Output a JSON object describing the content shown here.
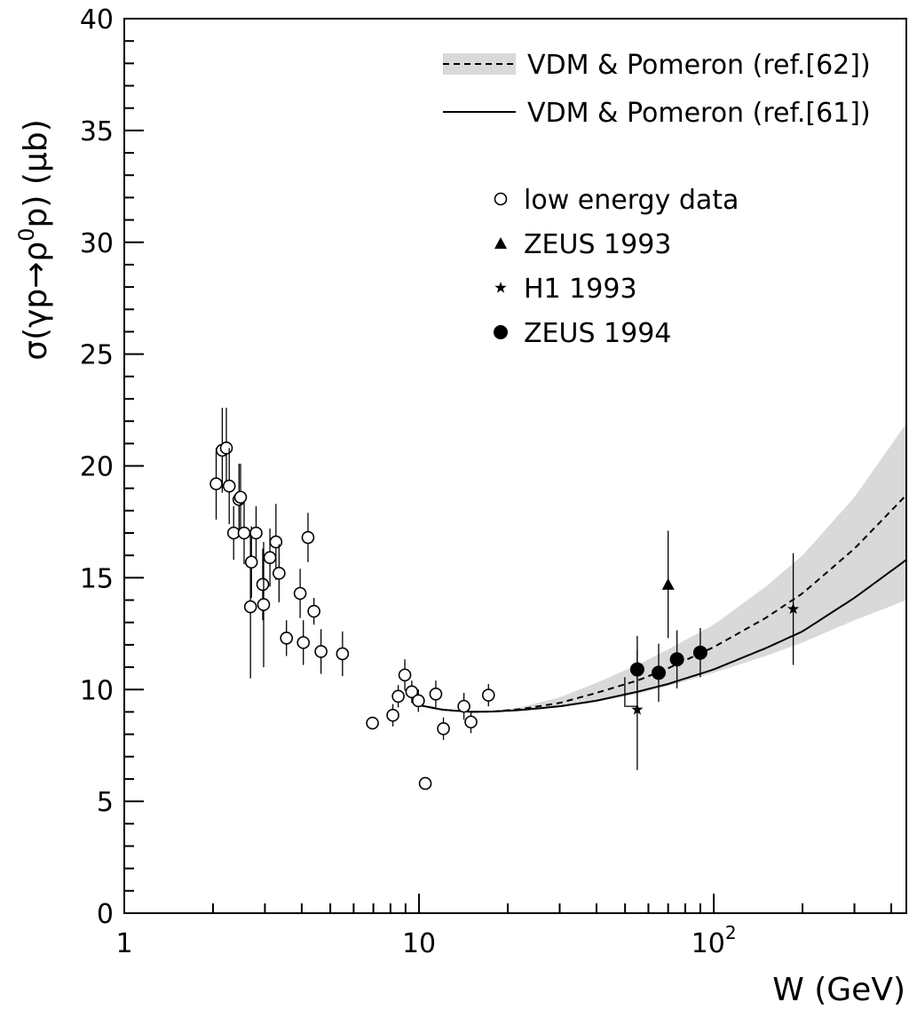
{
  "chart_data": {
    "type": "scatter",
    "title": "",
    "xlabel": "W (GeV)",
    "ylabel": "σ(γp→ρ⁰p) (μb)",
    "xscale": "log",
    "xlim": [
      1,
      450
    ],
    "ylim": [
      0,
      40
    ],
    "x_ticks": [
      {
        "value": 1,
        "label": "1"
      },
      {
        "value": 10,
        "label": "10"
      },
      {
        "value": 100,
        "label": "10",
        "sup": "2"
      }
    ],
    "y_ticks": [
      0,
      5,
      10,
      15,
      20,
      25,
      30,
      35,
      40
    ],
    "y_tick_labels": [
      "0",
      "5",
      "10",
      "15",
      "20",
      "25",
      "30",
      "35",
      "40"
    ],
    "grid": false,
    "legend_position": "top-right",
    "legend": [
      {
        "label": "VDM & Pomeron (ref.[62])",
        "style": "dashed-band"
      },
      {
        "label": "VDM & Pomeron (ref.[61])",
        "style": "solid"
      },
      {
        "label": "low energy data",
        "marker": "open-circle"
      },
      {
        "label": "ZEUS 1993",
        "marker": "triangle"
      },
      {
        "label": "H1 1993",
        "marker": "star"
      },
      {
        "label": "ZEUS 1994",
        "marker": "filled-circle"
      }
    ],
    "series": [
      {
        "name": "low energy data",
        "marker": "open-circle",
        "points": [
          {
            "x": 2.05,
            "y": 19.2,
            "err": 1.6
          },
          {
            "x": 2.15,
            "y": 20.7,
            "err": 1.9
          },
          {
            "x": 2.22,
            "y": 20.8,
            "err": 1.8
          },
          {
            "x": 2.27,
            "y": 19.1,
            "err": 1.7
          },
          {
            "x": 2.35,
            "y": 17.0,
            "err": 1.2
          },
          {
            "x": 2.45,
            "y": 18.5,
            "err": 1.6
          },
          {
            "x": 2.48,
            "y": 18.6,
            "err": 1.5
          },
          {
            "x": 2.55,
            "y": 17.0,
            "err": 1.4
          },
          {
            "x": 2.68,
            "y": 13.7,
            "err": 3.2
          },
          {
            "x": 2.7,
            "y": 15.7,
            "err": 1.6
          },
          {
            "x": 2.8,
            "y": 17.0,
            "err": 1.2
          },
          {
            "x": 2.95,
            "y": 14.7,
            "err": 1.6
          },
          {
            "x": 2.97,
            "y": 13.8,
            "err": 2.8
          },
          {
            "x": 3.12,
            "y": 15.9,
            "err": 1.3
          },
          {
            "x": 3.27,
            "y": 16.6,
            "err": 1.7
          },
          {
            "x": 3.35,
            "y": 15.2,
            "err": 1.3
          },
          {
            "x": 3.55,
            "y": 12.3,
            "err": 0.8
          },
          {
            "x": 3.95,
            "y": 14.3,
            "err": 1.1
          },
          {
            "x": 4.05,
            "y": 12.1,
            "err": 1.0
          },
          {
            "x": 4.2,
            "y": 16.8,
            "err": 1.1
          },
          {
            "x": 4.4,
            "y": 13.5,
            "err": 0.6
          },
          {
            "x": 4.65,
            "y": 11.7,
            "err": 1.0
          },
          {
            "x": 5.5,
            "y": 11.6,
            "err": 1.0
          },
          {
            "x": 6.95,
            "y": 8.5,
            "err": 0.2
          },
          {
            "x": 8.15,
            "y": 8.85,
            "err": 0.5
          },
          {
            "x": 8.5,
            "y": 9.7,
            "err": 0.5
          },
          {
            "x": 8.95,
            "y": 10.65,
            "err": 0.7
          },
          {
            "x": 9.45,
            "y": 9.9,
            "err": 0.5
          },
          {
            "x": 9.95,
            "y": 9.5,
            "err": 0.5
          },
          {
            "x": 10.5,
            "y": 5.8,
            "err": 0.2
          },
          {
            "x": 11.4,
            "y": 9.8,
            "err": 0.6
          },
          {
            "x": 12.1,
            "y": 8.25,
            "err": 0.5
          },
          {
            "x": 14.2,
            "y": 9.25,
            "err": 0.6
          },
          {
            "x": 15.0,
            "y": 8.55,
            "err": 0.5
          },
          {
            "x": 17.2,
            "y": 9.75,
            "err": 0.5
          }
        ]
      },
      {
        "name": "ZEUS 1993",
        "marker": "triangle",
        "points": [
          {
            "x": 70,
            "y": 14.7,
            "err": 2.4
          }
        ]
      },
      {
        "name": "H1 1993",
        "marker": "star",
        "points": [
          {
            "x": 55,
            "y": 9.1,
            "err": 2.7,
            "bracket": 9.25
          },
          {
            "x": 186,
            "y": 13.6,
            "err": 2.5
          }
        ]
      },
      {
        "name": "ZEUS 1994",
        "marker": "filled-circle",
        "points": [
          {
            "x": 55,
            "y": 10.9,
            "err": 1.5
          },
          {
            "x": 65,
            "y": 10.75,
            "err": 1.3
          },
          {
            "x": 75,
            "y": 11.35,
            "err": 1.3
          },
          {
            "x": 90,
            "y": 11.65,
            "err": 1.1
          }
        ]
      }
    ],
    "curves": [
      {
        "name": "VDM & Pomeron (ref.[62])",
        "style": "dashed",
        "points": [
          [
            10,
            9.3
          ],
          [
            12,
            9.1
          ],
          [
            15,
            9.0
          ],
          [
            18,
            9.02
          ],
          [
            22,
            9.12
          ],
          [
            30,
            9.4
          ],
          [
            40,
            9.85
          ],
          [
            55,
            10.4
          ],
          [
            70,
            10.95
          ],
          [
            100,
            11.9
          ],
          [
            150,
            13.2
          ],
          [
            200,
            14.3
          ],
          [
            300,
            16.3
          ],
          [
            450,
            18.7
          ]
        ],
        "band_upper": [
          [
            15,
            9.0
          ],
          [
            18,
            9.05
          ],
          [
            22,
            9.2
          ],
          [
            30,
            9.65
          ],
          [
            40,
            10.3
          ],
          [
            55,
            11.1
          ],
          [
            70,
            11.8
          ],
          [
            100,
            12.9
          ],
          [
            150,
            14.6
          ],
          [
            200,
            16.0
          ],
          [
            300,
            18.6
          ],
          [
            450,
            21.9
          ]
        ],
        "band_lower": [
          [
            15,
            9.0
          ],
          [
            18,
            9.0
          ],
          [
            22,
            9.05
          ],
          [
            30,
            9.2
          ],
          [
            40,
            9.45
          ],
          [
            55,
            9.8
          ],
          [
            70,
            10.15
          ],
          [
            100,
            10.75
          ],
          [
            150,
            11.5
          ],
          [
            200,
            12.1
          ],
          [
            300,
            13.1
          ],
          [
            450,
            14.0
          ]
        ]
      },
      {
        "name": "VDM & Pomeron (ref.[61])",
        "style": "solid",
        "points": [
          [
            10,
            9.3
          ],
          [
            12,
            9.1
          ],
          [
            15,
            9.0
          ],
          [
            18,
            9.02
          ],
          [
            22,
            9.08
          ],
          [
            30,
            9.25
          ],
          [
            40,
            9.5
          ],
          [
            55,
            9.9
          ],
          [
            70,
            10.25
          ],
          [
            100,
            10.9
          ],
          [
            150,
            11.85
          ],
          [
            200,
            12.6
          ],
          [
            300,
            14.1
          ],
          [
            450,
            15.8
          ]
        ]
      }
    ],
    "colors": {
      "band": "#d9d9d9",
      "ink": "#000000",
      "background": "#ffffff"
    }
  }
}
